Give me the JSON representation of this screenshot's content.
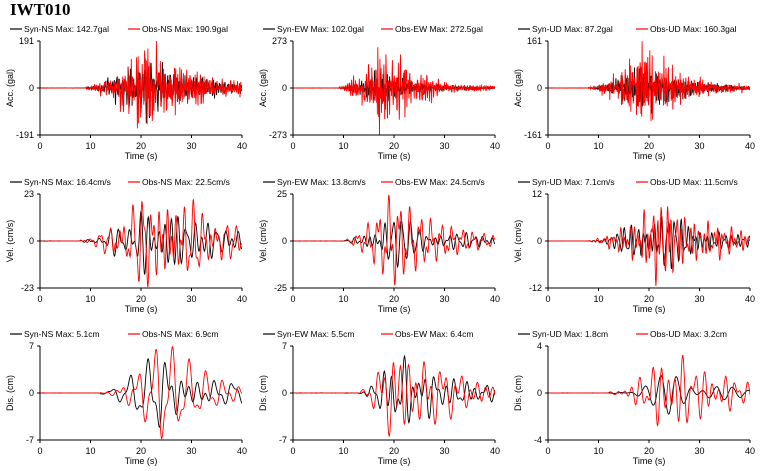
{
  "station": "IWT010",
  "colors": {
    "syn": "#000000",
    "obs": "#ff0000"
  },
  "chart_data": [
    {
      "type": "line",
      "row": "acc",
      "component": "NS",
      "ylabel": "Acc. (gal)",
      "xlabel": "Time (s)",
      "xlim": [
        0,
        40
      ],
      "ylim": [
        -191,
        191
      ],
      "yticks": [
        "191",
        "0",
        "-191"
      ],
      "xticks": [
        "0",
        "10",
        "20",
        "30",
        "40"
      ],
      "syn_label": "Syn-NS  Max: 142.7gal",
      "obs_label": "Obs-NS  Max: 190.9gal",
      "syn_max": 142.7,
      "obs_max": 190.9,
      "onset": 9,
      "peak_t": 21,
      "rise": 3.5,
      "decay": 9,
      "mode": "acc",
      "period": 0.35
    },
    {
      "type": "line",
      "row": "acc",
      "component": "EW",
      "ylabel": "Acc. (gal)",
      "xlabel": "Time (s)",
      "xlim": [
        0,
        40
      ],
      "ylim": [
        -273,
        273
      ],
      "yticks": [
        "273",
        "0",
        "-273"
      ],
      "xticks": [
        "0",
        "10",
        "20",
        "30",
        "40"
      ],
      "syn_label": "Syn-EW  Max: 102.0gal",
      "obs_label": "Obs-EW  Max: 272.5gal",
      "syn_max": 102.0,
      "obs_max": 272.5,
      "onset": 9,
      "peak_t": 17.5,
      "rise": 2.5,
      "decay": 7,
      "mode": "acc",
      "period": 0.35
    },
    {
      "type": "line",
      "row": "acc",
      "component": "UD",
      "ylabel": "Acc. (gal)",
      "xlabel": "Time (s)",
      "xlim": [
        0,
        40
      ],
      "ylim": [
        -161,
        161
      ],
      "yticks": [
        "161",
        "0",
        "-161"
      ],
      "xticks": [
        "0",
        "10",
        "20",
        "30",
        "40"
      ],
      "syn_label": "Syn-UD  Max: 87.2gal",
      "obs_label": "Obs-UD  Max: 160.3gal",
      "syn_max": 87.2,
      "obs_max": 160.3,
      "onset": 8,
      "peak_t": 18.5,
      "rise": 4,
      "decay": 8,
      "mode": "acc",
      "period": 0.3
    },
    {
      "type": "line",
      "row": "vel",
      "component": "NS",
      "ylabel": "Vel. (cm/s)",
      "xlabel": "Time (s)",
      "xlim": [
        0,
        40
      ],
      "ylim": [
        -23,
        23
      ],
      "yticks": [
        "23",
        "0",
        "-23"
      ],
      "xticks": [
        "0",
        "10",
        "20",
        "30",
        "40"
      ],
      "syn_label": "Syn-NS  Max: 16.4cm/s",
      "obs_label": "Obs-NS  Max: 22.5cm/s",
      "syn_max": 16.4,
      "obs_max": 22.5,
      "onset": 8,
      "peak_t": 24,
      "rise": 5,
      "decay": 10,
      "mode": "vel",
      "period": 1.5
    },
    {
      "type": "line",
      "row": "vel",
      "component": "EW",
      "ylabel": "Vel. (cm/s)",
      "xlabel": "Time (s)",
      "xlim": [
        0,
        40
      ],
      "ylim": [
        -25,
        25
      ],
      "yticks": [
        "25",
        "0",
        "-25"
      ],
      "xticks": [
        "0",
        "10",
        "20",
        "30",
        "40"
      ],
      "syn_label": "Syn-EW  Max: 13.8cm/s",
      "obs_label": "Obs-EW  Max: 24.5cm/s",
      "syn_max": 13.8,
      "obs_max": 24.5,
      "onset": 10,
      "peak_t": 19.5,
      "rise": 3.5,
      "decay": 10,
      "mode": "vel",
      "period": 1.4
    },
    {
      "type": "line",
      "row": "vel",
      "component": "UD",
      "ylabel": "Vel. (cm/s)",
      "xlabel": "Time (s)",
      "xlim": [
        0,
        40
      ],
      "ylim": [
        -12,
        12
      ],
      "yticks": [
        "12",
        "0",
        "-12"
      ],
      "xticks": [
        "0",
        "10",
        "20",
        "30",
        "40"
      ],
      "syn_label": "Syn-UD  Max: 7.1cm/s",
      "obs_label": "Obs-UD  Max: 11.5cm/s",
      "syn_max": 7.1,
      "obs_max": 11.5,
      "onset": 8,
      "peak_t": 22,
      "rise": 5,
      "decay": 12,
      "mode": "vel",
      "period": 1.1
    },
    {
      "type": "line",
      "row": "dis",
      "component": "NS",
      "ylabel": "Dis. (cm)",
      "xlabel": "Time (s)",
      "xlim": [
        0,
        40
      ],
      "ylim": [
        -7,
        7
      ],
      "yticks": [
        "7",
        "0",
        "-7"
      ],
      "xticks": [
        "0",
        "10",
        "20",
        "30",
        "40"
      ],
      "syn_label": "Syn-NS  Max: 5.1cm",
      "obs_label": "Obs-NS  Max: 6.9cm",
      "syn_max": 5.1,
      "obs_max": 6.9,
      "onset": 12,
      "peak_t": 24,
      "rise": 4,
      "decay": 10,
      "mode": "dis",
      "period": 2.6
    },
    {
      "type": "line",
      "row": "dis",
      "component": "EW",
      "ylabel": "Dis. (cm)",
      "xlabel": "Time (s)",
      "xlim": [
        0,
        40
      ],
      "ylim": [
        -7,
        7
      ],
      "yticks": [
        "7",
        "0",
        "-7"
      ],
      "xticks": [
        "0",
        "10",
        "20",
        "30",
        "40"
      ],
      "syn_label": "Syn-EW  Max: 5.5cm",
      "obs_label": "Obs-EW  Max: 6.4cm",
      "syn_max": 5.5,
      "obs_max": 6.4,
      "onset": 13,
      "peak_t": 20,
      "rise": 3,
      "decay": 12,
      "mode": "dis",
      "period": 2.4
    },
    {
      "type": "line",
      "row": "dis",
      "component": "UD",
      "ylabel": "Dis. (cm)",
      "xlabel": "Time (s)",
      "xlim": [
        0,
        40
      ],
      "ylim": [
        -4,
        4
      ],
      "yticks": [
        "4",
        "0",
        "-4"
      ],
      "xticks": [
        "0",
        "10",
        "20",
        "30",
        "40"
      ],
      "syn_label": "Syn-UD  Max: 1.8cm",
      "obs_label": "Obs-UD  Max: 3.2cm",
      "syn_max": 1.8,
      "obs_max": 3.2,
      "onset": 12,
      "peak_t": 24,
      "rise": 5,
      "decay": 12,
      "mode": "dis",
      "period": 2.2
    }
  ]
}
